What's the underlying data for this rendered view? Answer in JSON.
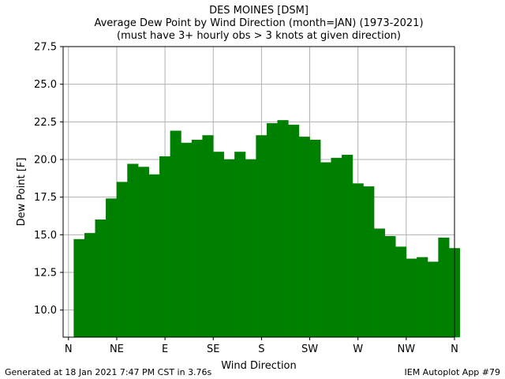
{
  "chart_data": {
    "type": "bar",
    "title": "DES MOINES [DSM]",
    "subtitle_lines": [
      "Average Dew Point by Wind Direction (month=JAN) (1973-2021)",
      "(must have 3+ hourly obs > 3 knots at given direction)"
    ],
    "xlabel": "Wind Direction",
    "ylabel": "Dew Point [F]",
    "ylim": [
      8.2,
      27.5
    ],
    "xlim": [
      -5,
      360
    ],
    "x_ticks": [
      0,
      45,
      90,
      135,
      180,
      225,
      270,
      315,
      360
    ],
    "x_tick_labels": [
      "N",
      "NE",
      "E",
      "SE",
      "S",
      "SW",
      "W",
      "NW",
      "N"
    ],
    "y_ticks": [
      10.0,
      12.5,
      15.0,
      17.5,
      20.0,
      22.5,
      25.0,
      27.5
    ],
    "y_tick_labels": [
      "10.0",
      "12.5",
      "15.0",
      "17.5",
      "20.0",
      "22.5",
      "25.0",
      "27.5"
    ],
    "bar_width_deg": 10,
    "categories": [
      10,
      20,
      30,
      40,
      50,
      60,
      70,
      80,
      90,
      100,
      110,
      120,
      130,
      140,
      150,
      160,
      170,
      180,
      190,
      200,
      210,
      220,
      230,
      240,
      250,
      260,
      270,
      280,
      290,
      300,
      310,
      320,
      330,
      340,
      350,
      360
    ],
    "values": [
      14.7,
      15.1,
      16.0,
      17.4,
      18.5,
      19.7,
      19.5,
      19.0,
      20.2,
      21.9,
      21.1,
      21.3,
      21.6,
      20.5,
      20.0,
      20.5,
      20.0,
      21.6,
      22.4,
      22.6,
      22.3,
      21.5,
      21.3,
      19.8,
      20.1,
      20.3,
      18.4,
      18.2,
      15.4,
      14.9,
      14.2,
      13.4,
      13.5,
      13.2,
      14.8,
      14.1
    ],
    "bar_color": "#008000",
    "grid": true
  },
  "footer": {
    "left": "Generated at 18 Jan 2021 7:47 PM CST in 3.76s",
    "right": "IEM Autoplot App #79"
  }
}
